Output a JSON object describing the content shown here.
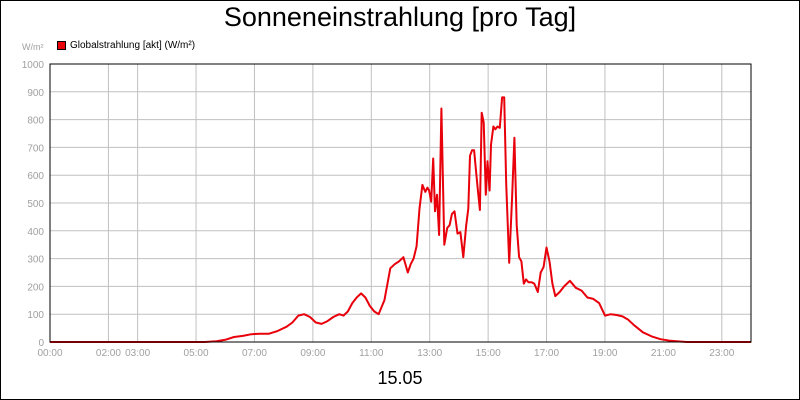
{
  "chart_data": {
    "type": "line",
    "title": "Sonneneinstrahlung [pro Tag]",
    "ylabel": "W/m²",
    "xlabel": "15.05",
    "ylim": [
      0,
      1000
    ],
    "yticks": [
      0,
      100,
      200,
      300,
      400,
      500,
      600,
      700,
      800,
      900,
      1000
    ],
    "xlim": [
      0,
      24
    ],
    "xticks": [
      {
        "pos": 0,
        "label": "00:00"
      },
      {
        "pos": 2,
        "label": "02:00"
      },
      {
        "pos": 3,
        "label": "03:00"
      },
      {
        "pos": 5,
        "label": "05:00"
      },
      {
        "pos": 7,
        "label": "07:00"
      },
      {
        "pos": 9,
        "label": "09:00"
      },
      {
        "pos": 11,
        "label": "11:00"
      },
      {
        "pos": 13,
        "label": "13:00"
      },
      {
        "pos": 15,
        "label": "15:00"
      },
      {
        "pos": 17,
        "label": "17:00"
      },
      {
        "pos": 19,
        "label": "19:00"
      },
      {
        "pos": 21,
        "label": "21:00"
      },
      {
        "pos": 23,
        "label": "23:00"
      }
    ],
    "grid": true,
    "legend": "top-left",
    "series": [
      {
        "name": "Globalstrahlung [akt] (W/m²)",
        "color": "#e8000b",
        "x": [
          0,
          5.3,
          5.7,
          6.0,
          6.3,
          6.6,
          6.9,
          7.2,
          7.5,
          7.8,
          8.1,
          8.3,
          8.5,
          8.7,
          8.9,
          9.1,
          9.3,
          9.5,
          9.7,
          9.9,
          10.05,
          10.2,
          10.35,
          10.5,
          10.65,
          10.8,
          10.95,
          11.1,
          11.25,
          11.45,
          11.65,
          11.8,
          11.95,
          12.1,
          12.25,
          12.35,
          12.45,
          12.55,
          12.65,
          12.75,
          12.85,
          12.92,
          12.98,
          13.05,
          13.12,
          13.18,
          13.25,
          13.32,
          13.4,
          13.5,
          13.6,
          13.68,
          13.76,
          13.85,
          13.95,
          14.05,
          14.15,
          14.25,
          14.32,
          14.38,
          14.45,
          14.52,
          14.58,
          14.65,
          14.72,
          14.78,
          14.85,
          14.92,
          14.98,
          15.05,
          15.1,
          15.18,
          15.25,
          15.32,
          15.4,
          15.48,
          15.55,
          15.62,
          15.72,
          15.82,
          15.9,
          15.98,
          16.06,
          16.14,
          16.22,
          16.3,
          16.38,
          16.48,
          16.58,
          16.7,
          16.8,
          16.9,
          17.0,
          17.1,
          17.2,
          17.3,
          17.45,
          17.6,
          17.8,
          18.0,
          18.2,
          18.4,
          18.6,
          18.8,
          19.0,
          19.2,
          19.4,
          19.6,
          19.8,
          20.0,
          20.3,
          20.6,
          20.9,
          21.2,
          21.5,
          21.8,
          22.1,
          24
        ],
        "values": [
          0,
          0,
          3,
          8,
          18,
          22,
          28,
          30,
          30,
          40,
          55,
          70,
          95,
          100,
          90,
          70,
          65,
          75,
          90,
          100,
          95,
          110,
          140,
          160,
          175,
          160,
          130,
          110,
          100,
          150,
          265,
          280,
          290,
          305,
          250,
          280,
          300,
          345,
          480,
          565,
          540,
          555,
          545,
          505,
          660,
          470,
          530,
          385,
          840,
          350,
          410,
          420,
          460,
          470,
          390,
          395,
          305,
          420,
          480,
          670,
          690,
          690,
          620,
          545,
          475,
          825,
          790,
          530,
          650,
          545,
          710,
          775,
          765,
          775,
          770,
          880,
          880,
          570,
          285,
          520,
          735,
          420,
          305,
          290,
          210,
          225,
          215,
          215,
          210,
          180,
          250,
          270,
          340,
          290,
          210,
          165,
          180,
          200,
          220,
          195,
          185,
          160,
          155,
          140,
          95,
          100,
          97,
          92,
          80,
          60,
          35,
          20,
          10,
          5,
          2,
          0,
          0,
          0
        ]
      }
    ]
  }
}
